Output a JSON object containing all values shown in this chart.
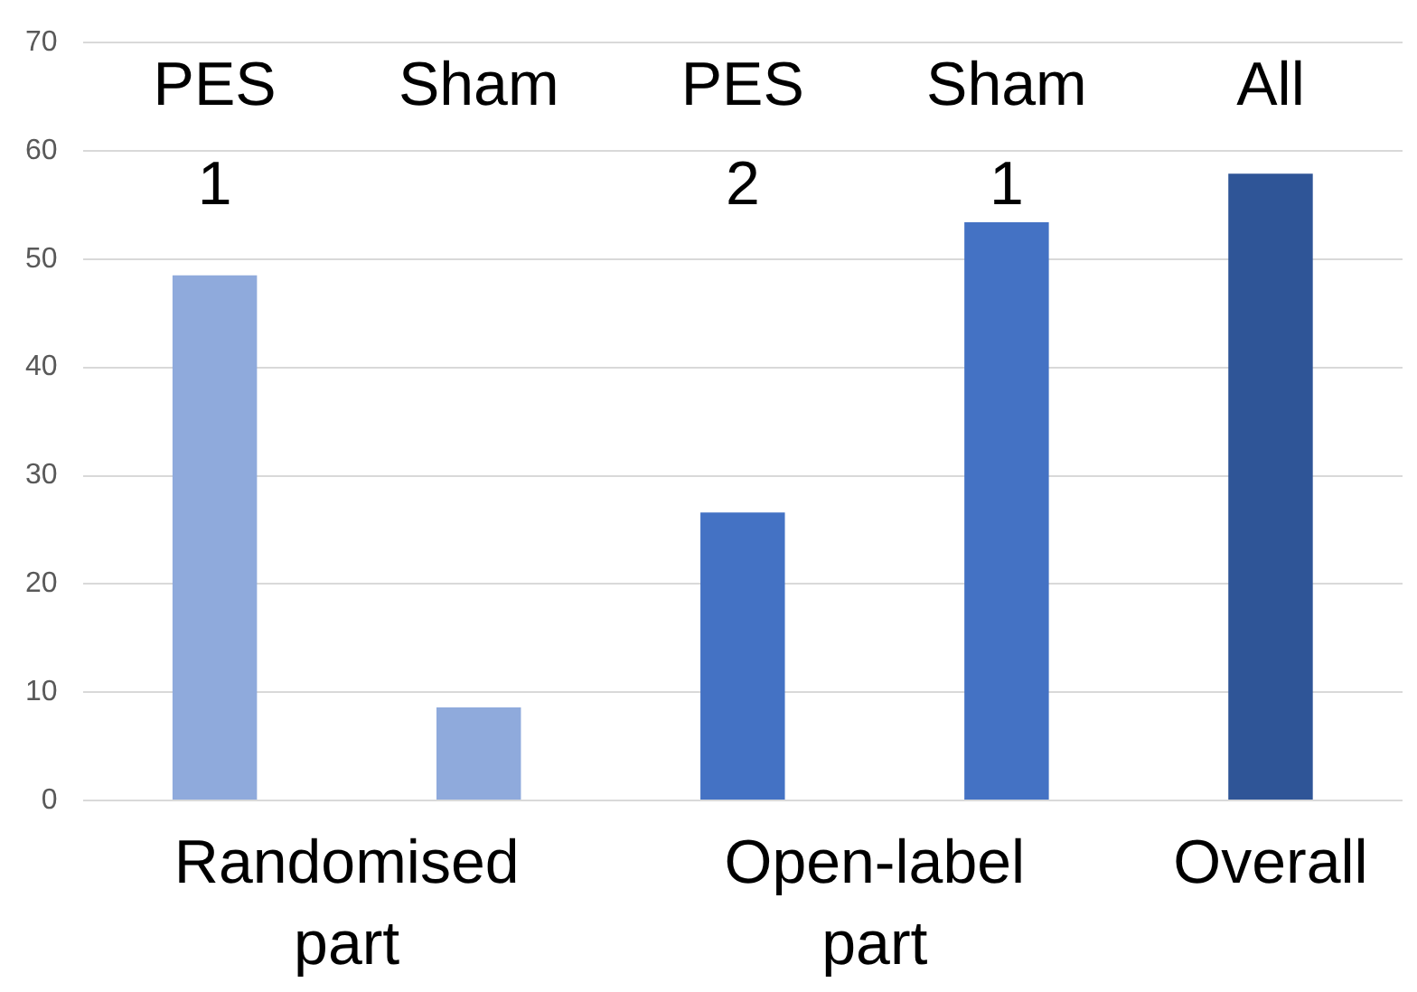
{
  "chart_data": {
    "type": "bar",
    "categories": [
      "PES 1",
      "Sham",
      "PES 2",
      "Sham 1",
      "All"
    ],
    "values": [
      48.5,
      8.6,
      26.6,
      53.4,
      57.9
    ],
    "colors": [
      "#8faadc",
      "#8faadc",
      "#4472c4",
      "#4472c4",
      "#2f5597"
    ],
    "ylim": [
      0,
      70
    ],
    "yticks": [
      0,
      10,
      20,
      30,
      40,
      50,
      60,
      70
    ],
    "grid": "y",
    "legend": false,
    "annotations": [
      "Randomised part",
      "Open-label part",
      "Overall"
    ]
  }
}
